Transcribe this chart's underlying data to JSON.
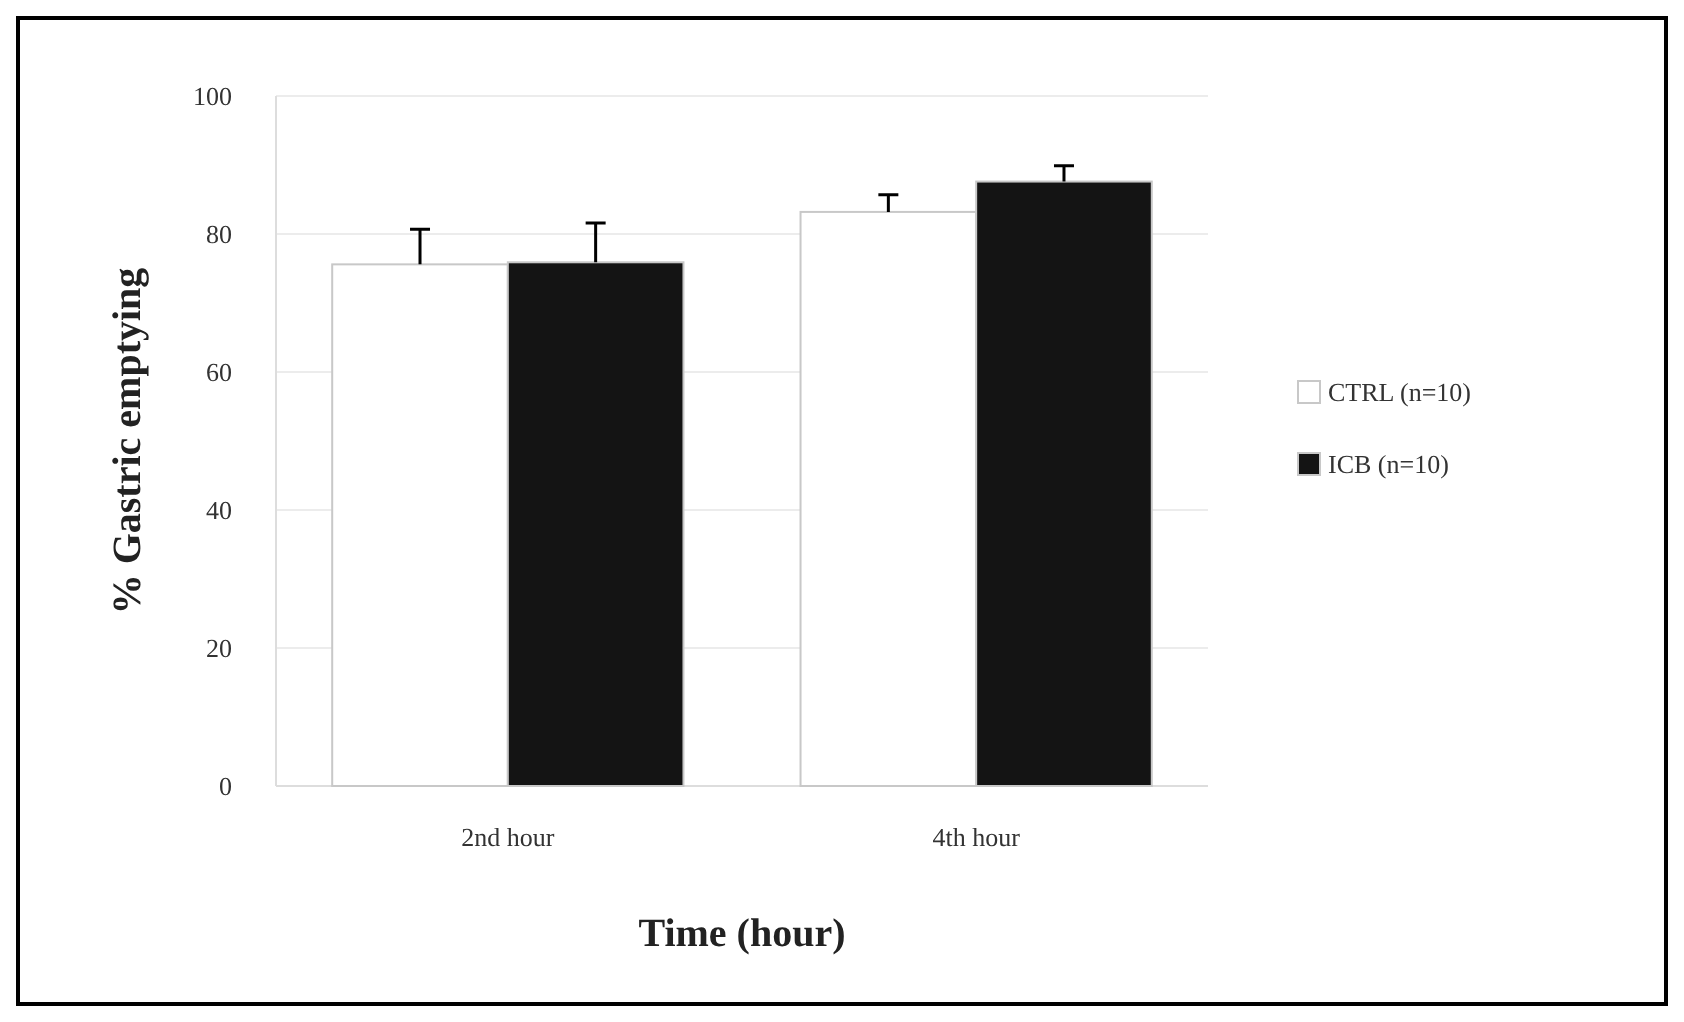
{
  "chart_data": {
    "type": "bar",
    "xlabel": "Time (hour)",
    "ylabel": "% Gastric emptying",
    "categories": [
      "2nd hour",
      "4th hour"
    ],
    "series": [
      {
        "name": "CTRL (n=10)",
        "color": "#ffffff",
        "values": [
          75.6,
          83.2
        ],
        "errors": [
          [
            75.6,
            80.7
          ],
          [
            83.2,
            85.7
          ]
        ]
      },
      {
        "name": "ICB (n=10)",
        "color": "#141414",
        "values": [
          75.9,
          87.6
        ],
        "errors": [
          [
            75.9,
            81.6
          ],
          [
            87.6,
            89.9
          ]
        ]
      }
    ],
    "ylim": [
      0,
      100
    ],
    "yticks": [
      0,
      20,
      40,
      60,
      80,
      100
    ],
    "grid": "y",
    "legend": "right"
  }
}
